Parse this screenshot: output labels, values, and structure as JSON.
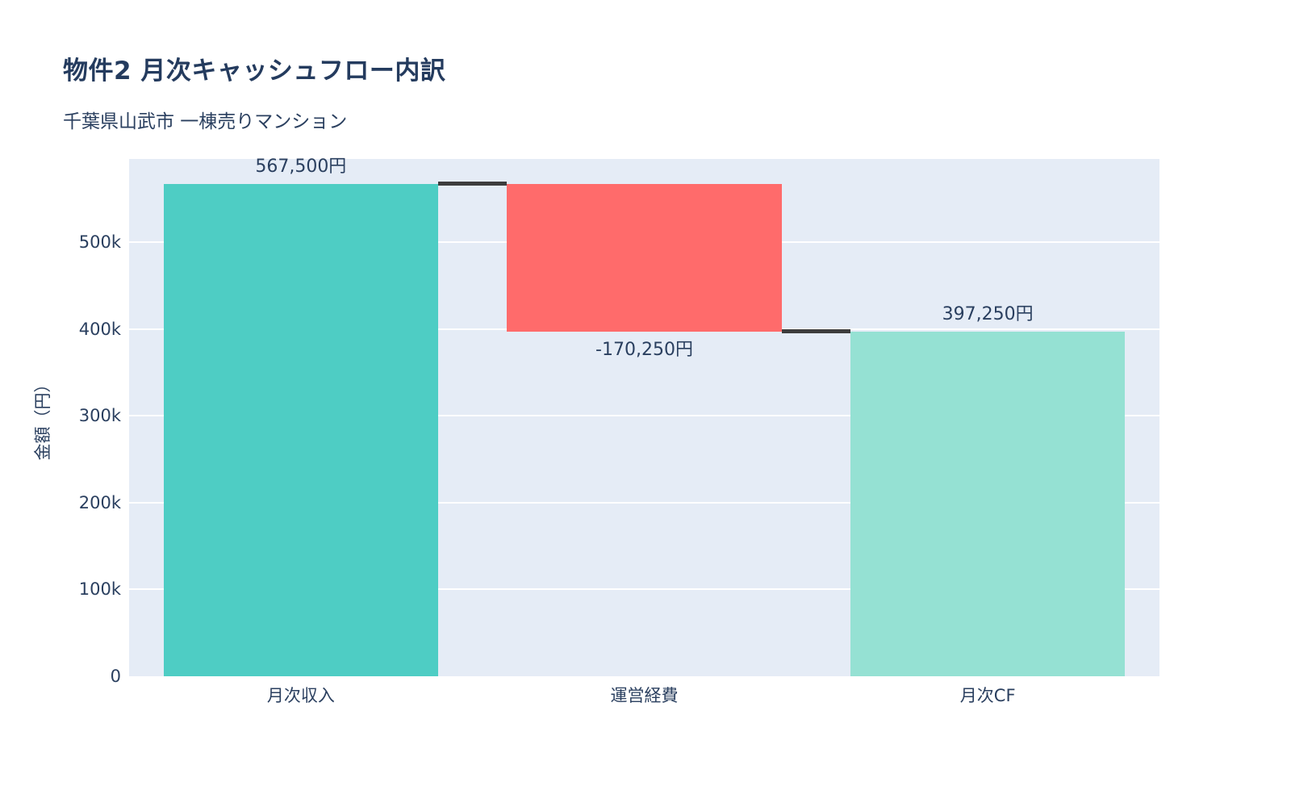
{
  "header": {
    "title": "物件2 月次キャッシュフロー内訳",
    "subtitle": "千葉県山武市 一棟売りマンション"
  },
  "chart_data": {
    "type": "bar",
    "variant": "waterfall",
    "title": "物件2 月次キャッシュフロー内訳",
    "subtitle": "千葉県山武市 一棟売りマンション",
    "ylabel": "金額（円）",
    "xlabel": "",
    "categories": [
      "月次収入",
      "運営経費",
      "月次CF"
    ],
    "measures": [
      "relative",
      "relative",
      "total"
    ],
    "values": [
      567500,
      -170250,
      397250
    ],
    "running_totals": [
      567500,
      397250,
      397250
    ],
    "bars": [
      {
        "category": "月次収入",
        "base": 0,
        "top": 567500,
        "color": "#4ECDC4",
        "label": "567,500円",
        "label_position": "above"
      },
      {
        "category": "運営経費",
        "base": 397250,
        "top": 567500,
        "color": "#FF6B6B",
        "label": "-170,250円",
        "label_position": "below"
      },
      {
        "category": "月次CF",
        "base": 0,
        "top": 397250,
        "color": "#95E1D3",
        "label": "397,250円",
        "label_position": "above"
      }
    ],
    "connectors": [
      {
        "level": 567500,
        "between": [
          "月次収入",
          "運営経費"
        ]
      },
      {
        "level": 397250,
        "between": [
          "運営経費",
          "月次CF"
        ]
      }
    ],
    "yticks": [
      {
        "value": 0,
        "label": "0"
      },
      {
        "value": 100000,
        "label": "100k"
      },
      {
        "value": 200000,
        "label": "200k"
      },
      {
        "value": 300000,
        "label": "300k"
      },
      {
        "value": 400000,
        "label": "400k"
      },
      {
        "value": 500000,
        "label": "500k"
      }
    ],
    "ylim": [
      0,
      596000
    ],
    "grid": true,
    "legend": false,
    "colors": {
      "plot_bg": "#E5ECF6",
      "gridline": "#FFFFFF",
      "connector": "#3D3D3D",
      "text": "#2A3F5F",
      "title_text": "#243B5E",
      "increase": "#4ECDC4",
      "decrease": "#FF6B6B",
      "total": "#95E1D3"
    }
  }
}
